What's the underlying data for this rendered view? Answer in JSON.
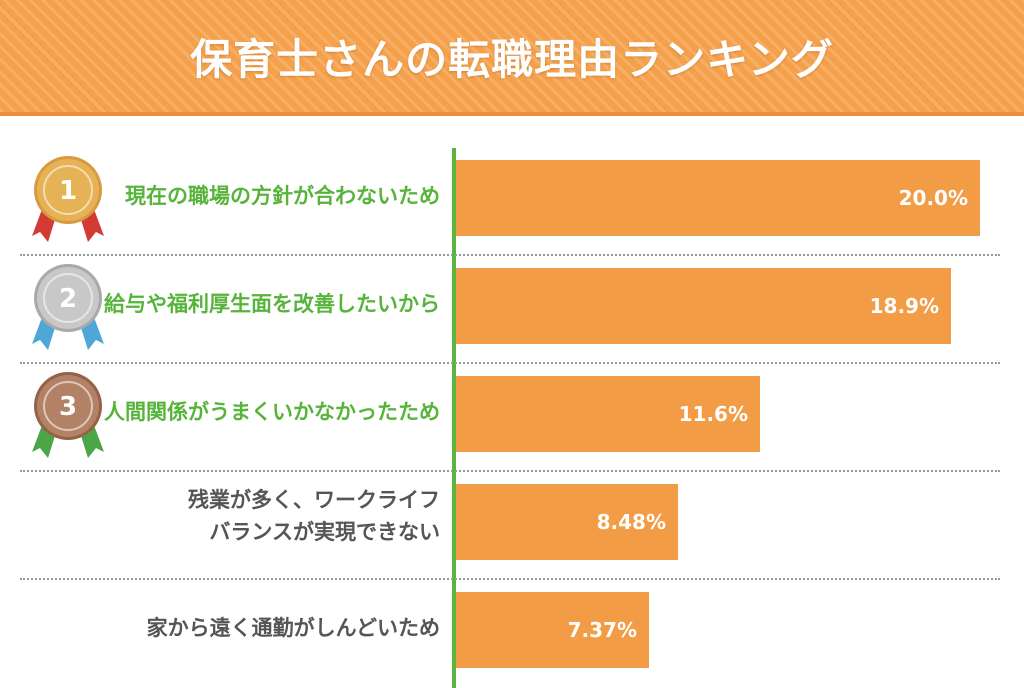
{
  "title": "保育士さんの転職理由ランキング",
  "colors": {
    "header": "#f5a04a",
    "bar": "#f29c45",
    "axis": "#5bb43f",
    "top_label": "#57b43a",
    "plain_label": "#555555",
    "gold": "#e6b256",
    "silver": "#c8c8c8",
    "bronze": "#b38266",
    "ribbon_red": "#d23a33",
    "ribbon_blue": "#4fa7d8",
    "ribbon_green": "#4aa647"
  },
  "chart_data": {
    "type": "bar",
    "orientation": "horizontal",
    "title": "保育士さんの転職理由ランキング",
    "categories": [
      "現在の職場の方針が合わないため",
      "給与や福利厚生面を改善したいから",
      "人間関係がうまくいかなかったため",
      "残業が多く、ワークライフバランスが実現できない",
      "家から遠く通勤がしんどいため"
    ],
    "label_lines": [
      [
        "現在の職場の方針が合わないため"
      ],
      [
        "給与や福利厚生面を改善したいから"
      ],
      [
        "人間関係がうまくいかなかったため"
      ],
      [
        "残業が多く、ワークライフ",
        "バランスが実現できない"
      ],
      [
        "家から遠く通勤がしんどいため"
      ]
    ],
    "values": [
      20.0,
      18.9,
      11.6,
      8.48,
      7.37
    ],
    "value_labels": [
      "20.0%",
      "18.9%",
      "11.6%",
      "8.48%",
      "7.37%"
    ],
    "ranks": [
      "1",
      "2",
      "3"
    ],
    "xlim": [
      0,
      20.0
    ],
    "grid": false,
    "legend": "none"
  }
}
